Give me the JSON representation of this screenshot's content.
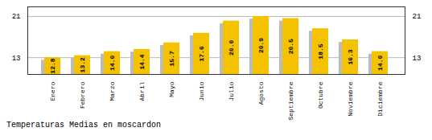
{
  "chart_data": {
    "type": "bar",
    "title": "Temperaturas Medias en moscardon",
    "categories": [
      "Enero",
      "Febrero",
      "Marzo",
      "Abril",
      "Mayo",
      "Junio",
      "Julio",
      "Agosto",
      "Septiembre",
      "Octubre",
      "Noviembre",
      "Diciembre"
    ],
    "series": [
      {
        "color": "#BBBBBB",
        "values": [
          12.3,
          12.7,
          13.5,
          13.9,
          15.2,
          17.1,
          19.5,
          20.4,
          20.0,
          18.0,
          15.8,
          13.5
        ]
      },
      {
        "color": "#F5C200",
        "values": [
          12.8,
          13.2,
          14.0,
          14.4,
          15.7,
          17.6,
          20.0,
          20.9,
          20.5,
          18.5,
          16.3,
          14.0
        ],
        "value_labels": [
          "12.8",
          "13.2",
          "14.0",
          "14.4",
          "15.7",
          "17.6",
          "20.0",
          "20.9",
          "20.5",
          "18.5",
          "16.3",
          "14.0"
        ]
      }
    ],
    "data_labels": true,
    "ylim": [
      9.5,
      22.8
    ],
    "yticks": [
      12.8,
      20.9
    ],
    "grid": true
  }
}
